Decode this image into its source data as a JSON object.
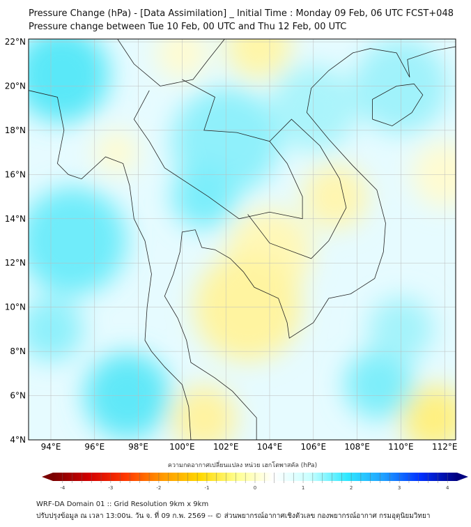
{
  "header": {
    "title_line1": "Pressure Change (hPa) - [Data Assimilation] _ Initial Time : Monday 09 Feb, 06 UTC FCST+048",
    "title_line2": "Pressure change between Tue 10 Feb, 00 UTC and Thu 12 Feb, 00 UTC"
  },
  "map": {
    "lon_range": [
      93,
      112.6
    ],
    "lat_range": [
      4,
      22.2
    ],
    "lat_labels": [
      "4°N",
      "6°N",
      "8°N",
      "10°N",
      "12°N",
      "14°N",
      "16°N",
      "18°N",
      "20°N",
      "22°N"
    ],
    "lat_values": [
      4,
      6,
      8,
      10,
      12,
      14,
      16,
      18,
      20,
      22
    ],
    "lon_labels": [
      "94°E",
      "96°E",
      "98°E",
      "100°E",
      "102°E",
      "104°E",
      "106°E",
      "108°E",
      "110°E",
      "112°E"
    ],
    "lon_values": [
      94,
      96,
      98,
      100,
      102,
      104,
      106,
      108,
      110,
      112
    ]
  },
  "colorbar": {
    "title": "ความกดอากาศเปลี่ยนแปลง หน่วย เฮกโตพาสคัล (hPa)",
    "range": [
      -4.2,
      4.2
    ],
    "tick_labels": [
      "-4",
      "-3",
      "-2",
      "-1",
      "0",
      "1",
      "2",
      "3",
      "4"
    ],
    "tick_values": [
      -4,
      -3,
      -2,
      -1,
      0,
      1,
      2,
      3,
      4
    ],
    "colors": [
      "#7a0000",
      "#d40000",
      "#ff3a00",
      "#ff9a00",
      "#ffd800",
      "#ffff90",
      "#ffffff",
      "#c8ffff",
      "#30e8ff",
      "#20a0ff",
      "#0030ff",
      "#000080"
    ]
  },
  "footer": {
    "line1": "WRF-DA Domain 01 :: Grid Resolution 9km x 9km",
    "line2": "ปรับปรุงข้อมูล ณ เวลา 13:00น. วัน จ. ที่ 09 ก.พ. 2569 -- © ส่วนพยากรณ์อากาศเชิงตัวเลข กองพยากรณ์อากาศ กรมอุตุนิยมวิทยา"
  }
}
